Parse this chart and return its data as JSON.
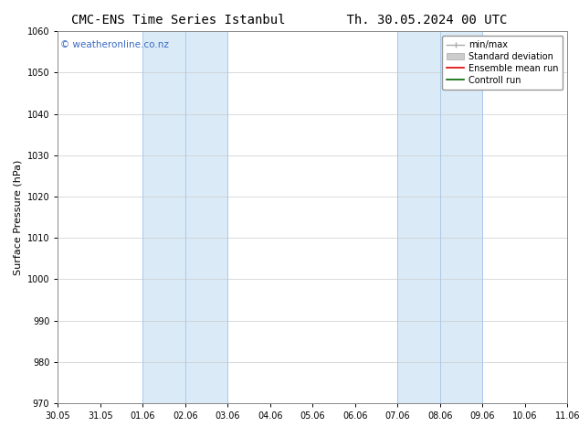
{
  "title_left": "CMC-ENS Time Series Istanbul",
  "title_right": "Th. 30.05.2024 00 UTC",
  "ylabel": "Surface Pressure (hPa)",
  "ylim": [
    970,
    1060
  ],
  "yticks": [
    970,
    980,
    990,
    1000,
    1010,
    1020,
    1030,
    1040,
    1050,
    1060
  ],
  "xlim_start": 0,
  "xlim_end": 12,
  "xtick_labels": [
    "30.05",
    "31.05",
    "01.06",
    "02.06",
    "03.06",
    "04.06",
    "05.06",
    "06.06",
    "07.06",
    "08.06",
    "09.06",
    "10.06",
    "11.06"
  ],
  "background_color": "#ffffff",
  "plot_bg_color": "#ffffff",
  "shaded_regions": [
    {
      "x_start": 2,
      "x_end": 4,
      "color": "#daeaf7"
    },
    {
      "x_start": 8,
      "x_end": 10,
      "color": "#daeaf7"
    }
  ],
  "shaded_inner_lines": [
    3,
    9
  ],
  "shaded_border_lines": [
    2,
    4,
    8,
    10
  ],
  "watermark_text": "© weatheronline.co.nz",
  "watermark_color": "#3a6bc4",
  "watermark_fontsize": 7.5,
  "legend_entries": [
    {
      "label": "min/max",
      "color": "#aaaaaa",
      "type": "minmax"
    },
    {
      "label": "Standard deviation",
      "color": "#cccccc",
      "type": "bar"
    },
    {
      "label": "Ensemble mean run",
      "color": "#dd0000",
      "type": "line"
    },
    {
      "label": "Controll run",
      "color": "#006600",
      "type": "line"
    }
  ],
  "title_fontsize": 10,
  "tick_fontsize": 7,
  "ylabel_fontsize": 8,
  "legend_fontsize": 7,
  "grid_color": "#cccccc",
  "grid_lw": 0.5,
  "border_line_color": "#a8c8e8",
  "border_line_lw": 0.7
}
